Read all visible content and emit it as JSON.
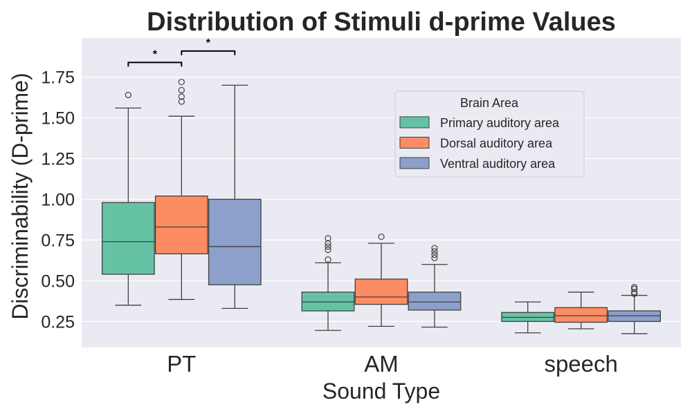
{
  "chart_data": {
    "type": "boxplot",
    "title": "Distribution of Stimuli d-prime Values",
    "xlabel": "Sound Type",
    "ylabel": "Discriminability (D-prime)",
    "categories": [
      "PT",
      "AM",
      "speech"
    ],
    "ylim": [
      0.09,
      1.99
    ],
    "yticks": [
      0.25,
      0.5,
      0.75,
      1.0,
      1.25,
      1.5,
      1.75
    ],
    "ytick_labels": [
      "0.25",
      "0.50",
      "0.75",
      "1.00",
      "1.25",
      "1.50",
      "1.75"
    ],
    "grid": true,
    "legend": {
      "title": "Brain Area",
      "placement": "upper-right"
    },
    "series": [
      {
        "name": "Primary auditory area",
        "color": "#66c2a5",
        "boxes": [
          {
            "whisker_low": 0.35,
            "q1": 0.54,
            "median": 0.74,
            "q3": 0.98,
            "whisker_high": 1.56,
            "outliers": [
              1.64
            ]
          },
          {
            "whisker_low": 0.195,
            "q1": 0.315,
            "median": 0.37,
            "q3": 0.43,
            "whisker_high": 0.61,
            "outliers": [
              0.63,
              0.69,
              0.71,
              0.73,
              0.76
            ]
          },
          {
            "whisker_low": 0.18,
            "q1": 0.25,
            "median": 0.275,
            "q3": 0.305,
            "whisker_high": 0.37,
            "outliers": []
          }
        ]
      },
      {
        "name": "Dorsal auditory area",
        "color": "#fc8d62",
        "boxes": [
          {
            "whisker_low": 0.385,
            "q1": 0.665,
            "median": 0.83,
            "q3": 1.02,
            "whisker_high": 1.51,
            "outliers": [
              1.6,
              1.63,
              1.67,
              1.72
            ]
          },
          {
            "whisker_low": 0.22,
            "q1": 0.355,
            "median": 0.4,
            "q3": 0.51,
            "whisker_high": 0.73,
            "outliers": [
              0.77
            ]
          },
          {
            "whisker_low": 0.205,
            "q1": 0.245,
            "median": 0.285,
            "q3": 0.335,
            "whisker_high": 0.43,
            "outliers": []
          }
        ]
      },
      {
        "name": "Ventral auditory area",
        "color": "#8da0cb",
        "boxes": [
          {
            "whisker_low": 0.33,
            "q1": 0.475,
            "median": 0.71,
            "q3": 1.0,
            "whisker_high": 1.7,
            "outliers": []
          },
          {
            "whisker_low": 0.215,
            "q1": 0.32,
            "median": 0.37,
            "q3": 0.43,
            "whisker_high": 0.6,
            "outliers": [
              0.64,
              0.66,
              0.68,
              0.7
            ]
          },
          {
            "whisker_low": 0.175,
            "q1": 0.25,
            "median": 0.285,
            "q3": 0.315,
            "whisker_high": 0.41,
            "outliers": [
              0.42,
              0.43,
              0.45,
              0.46
            ]
          }
        ]
      }
    ],
    "annotations": [
      {
        "text": "*",
        "category": "PT",
        "from_series": 0,
        "to_series": 1,
        "level": 1.84
      },
      {
        "text": "*",
        "category": "PT",
        "from_series": 1,
        "to_series": 2,
        "level": 1.91
      }
    ]
  }
}
